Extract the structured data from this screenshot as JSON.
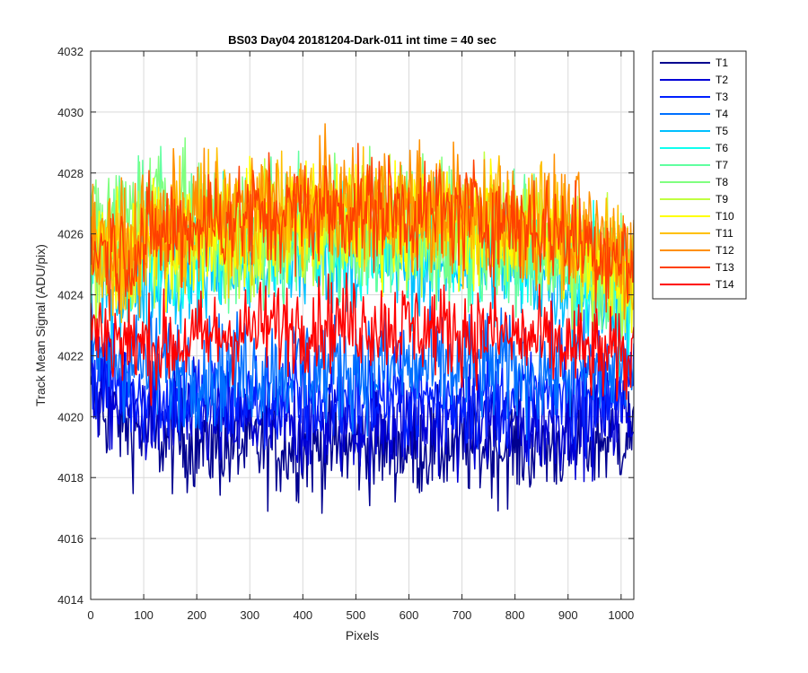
{
  "chart_data": {
    "type": "line",
    "title": "BS03 Day04 20181204-Dark-011 int time = 40 sec",
    "xlabel": "Pixels",
    "ylabel": "Track Mean Signal (ADU/pix)",
    "xlim": [
      0,
      1024
    ],
    "ylim": [
      4014,
      4032
    ],
    "xticks": [
      0,
      100,
      200,
      300,
      400,
      500,
      600,
      700,
      800,
      900,
      1000
    ],
    "yticks": [
      4014,
      4016,
      4018,
      4020,
      4022,
      4024,
      4026,
      4028,
      4030,
      4032
    ],
    "grid": true,
    "legend_position": "outside-top-right",
    "x": [
      0,
      64,
      128,
      192,
      256,
      320,
      384,
      448,
      512,
      576,
      640,
      704,
      768,
      832,
      896,
      960,
      1024
    ],
    "series": [
      {
        "name": "T1",
        "color": "#00008f",
        "noise": 1.2,
        "values": [
          4020.5,
          4019.8,
          4019.3,
          4019.2,
          4019.0,
          4019.0,
          4019.0,
          4019.0,
          4019.0,
          4019.0,
          4019.0,
          4019.0,
          4019.0,
          4019.0,
          4019.1,
          4019.2,
          4019.5
        ]
      },
      {
        "name": "T2",
        "color": "#0000d6",
        "noise": 1.2,
        "values": [
          4021.0,
          4020.3,
          4020.0,
          4019.9,
          4019.8,
          4019.8,
          4019.8,
          4019.8,
          4019.8,
          4019.8,
          4019.8,
          4019.8,
          4019.8,
          4019.8,
          4019.9,
          4020.0,
          4020.2
        ]
      },
      {
        "name": "T3",
        "color": "#0020ff",
        "noise": 1.2,
        "values": [
          4021.6,
          4021.0,
          4020.7,
          4020.6,
          4020.6,
          4020.6,
          4020.6,
          4020.6,
          4020.6,
          4020.6,
          4020.6,
          4020.6,
          4020.6,
          4020.6,
          4020.7,
          4020.8,
          4021.0
        ]
      },
      {
        "name": "T4",
        "color": "#0070ff",
        "noise": 1.3,
        "values": [
          4022.2,
          4021.8,
          4021.6,
          4021.5,
          4021.5,
          4021.6,
          4021.6,
          4021.6,
          4021.6,
          4021.6,
          4021.6,
          4021.6,
          4021.6,
          4021.5,
          4021.5,
          4021.5,
          4021.7
        ]
      },
      {
        "name": "T5",
        "color": "#00c0ff",
        "noise": 1.4,
        "values": [
          4024.5,
          4024.2,
          4024.6,
          4024.8,
          4025.0,
          4025.1,
          4025.2,
          4025.3,
          4025.3,
          4025.3,
          4025.2,
          4025.1,
          4025.0,
          4024.8,
          4024.5,
          4024.1,
          4023.5
        ]
      },
      {
        "name": "T6",
        "color": "#10ffef",
        "noise": 1.4,
        "values": [
          4025.0,
          4024.8,
          4025.2,
          4025.3,
          4025.5,
          4025.6,
          4025.7,
          4025.8,
          4025.8,
          4025.8,
          4025.7,
          4025.6,
          4025.5,
          4025.3,
          4025.0,
          4024.6,
          4024.0
        ]
      },
      {
        "name": "T7",
        "color": "#60ffa0",
        "noise": 1.4,
        "values": [
          4025.5,
          4026.3,
          4026.5,
          4025.8,
          4025.6,
          4025.7,
          4025.8,
          4025.9,
          4025.9,
          4025.9,
          4025.8,
          4025.7,
          4025.6,
          4025.4,
          4025.1,
          4024.7,
          4024.2
        ]
      },
      {
        "name": "T8",
        "color": "#80ff80",
        "noise": 1.5,
        "values": [
          4026.0,
          4026.8,
          4027.5,
          4026.5,
          4026.0,
          4026.1,
          4026.2,
          4026.3,
          4026.3,
          4026.3,
          4026.2,
          4026.1,
          4026.0,
          4025.8,
          4025.5,
          4025.0,
          4024.5
        ]
      },
      {
        "name": "T9",
        "color": "#c0ff40",
        "noise": 1.4,
        "values": [
          4025.3,
          4025.0,
          4025.5,
          4025.8,
          4026.0,
          4026.1,
          4026.2,
          4026.3,
          4026.3,
          4026.3,
          4026.2,
          4026.1,
          4026.0,
          4025.8,
          4025.5,
          4025.0,
          4024.5
        ]
      },
      {
        "name": "T10",
        "color": "#ffff00",
        "noise": 1.4,
        "values": [
          4025.5,
          4025.2,
          4025.8,
          4026.0,
          4026.2,
          4026.3,
          4026.4,
          4026.5,
          4026.5,
          4026.5,
          4026.4,
          4026.3,
          4026.2,
          4026.0,
          4025.7,
          4025.2,
          4024.7
        ]
      },
      {
        "name": "T11",
        "color": "#ffc000",
        "noise": 1.4,
        "values": [
          4025.7,
          4025.4,
          4026.0,
          4026.3,
          4026.5,
          4026.6,
          4026.7,
          4026.8,
          4026.8,
          4026.8,
          4026.7,
          4026.6,
          4026.5,
          4026.3,
          4026.0,
          4025.5,
          4025.0
        ]
      },
      {
        "name": "T12",
        "color": "#ff9000",
        "noise": 1.4,
        "values": [
          4025.8,
          4025.5,
          4026.2,
          4026.5,
          4026.7,
          4026.8,
          4026.9,
          4027.0,
          4027.0,
          4027.0,
          4026.9,
          4026.8,
          4026.7,
          4026.5,
          4026.2,
          4025.7,
          4025.2
        ]
      },
      {
        "name": "T13",
        "color": "#ff4000",
        "noise": 1.3,
        "values": [
          4025.6,
          4025.3,
          4026.0,
          4026.3,
          4026.5,
          4026.6,
          4026.7,
          4026.8,
          4026.8,
          4026.8,
          4026.7,
          4026.6,
          4026.5,
          4026.3,
          4026.0,
          4025.5,
          4025.0
        ]
      },
      {
        "name": "T14",
        "color": "#ff0000",
        "noise": 1.1,
        "values": [
          4023.0,
          4022.4,
          4022.3,
          4022.5,
          4022.7,
          4022.9,
          4023.0,
          4023.1,
          4023.1,
          4023.0,
          4022.9,
          4022.8,
          4022.7,
          4022.5,
          4022.3,
          4022.0,
          4021.8
        ]
      }
    ]
  }
}
